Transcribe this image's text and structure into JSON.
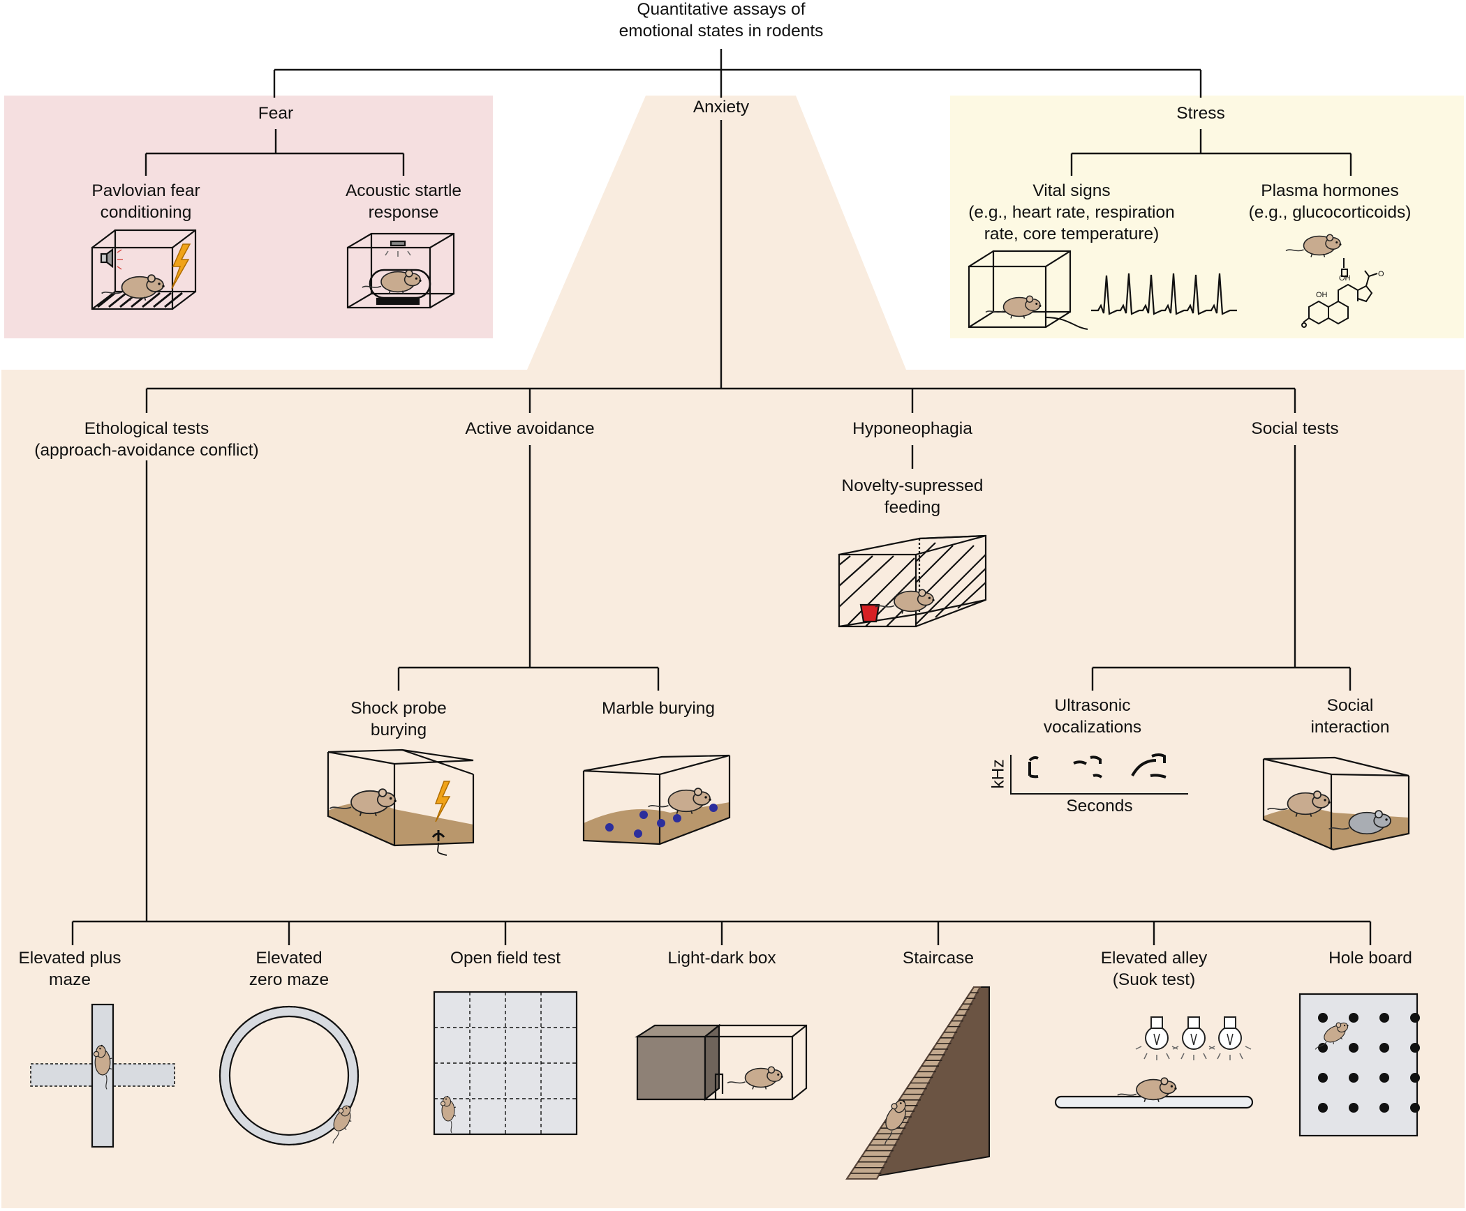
{
  "title": {
    "line1": "Quantitative assays of",
    "line2": "emotional states in rodents"
  },
  "colors": {
    "fear_bg": "#f5dfe0",
    "anxiety_bg": "#f9ecdf",
    "stress_bg": "#fdf9e3",
    "mouse": "#c8ab8f",
    "bedding": "#b9976c",
    "marble": "#2c2e9c",
    "cup": "#d62024",
    "bolt": "#f0a319"
  },
  "fear": {
    "label": "Fear",
    "pavlovian": {
      "line1": "Pavlovian fear",
      "line2": "conditioning"
    },
    "startle": {
      "line1": "Acoustic startle",
      "line2": "response"
    }
  },
  "stress": {
    "label": "Stress",
    "vital": {
      "line1": "Vital signs",
      "line2": "(e.g., heart rate, respiration",
      "line3": "rate, core temperature)"
    },
    "plasma": {
      "line1": "Plasma hormones",
      "line2": "(e.g., glucocorticoids)"
    }
  },
  "anxiety": {
    "label": "Anxiety",
    "ethological": {
      "line1": "Ethological tests",
      "line2": "(approach-avoidance conflict)"
    },
    "active": {
      "label": "Active avoidance"
    },
    "hypo": {
      "label": "Hyponeophagia"
    },
    "social": {
      "label": "Social tests"
    },
    "novelty": {
      "line1": "Novelty-supressed",
      "line2": "feeding"
    },
    "shock": {
      "line1": "Shock probe",
      "line2": "burying"
    },
    "marble": {
      "label": "Marble burying"
    },
    "usv": {
      "line1": "Ultrasonic",
      "line2": "vocalizations",
      "ylabel": "kHz",
      "xlabel": "Seconds"
    },
    "social_int": {
      "line1": "Social",
      "line2": "interaction"
    }
  },
  "ethological_tests": {
    "epm": {
      "line1": "Elevated plus",
      "line2": "maze"
    },
    "ezm": {
      "line1": "Elevated",
      "line2": "zero maze"
    },
    "oft": {
      "label": "Open field test"
    },
    "ldb": {
      "label": "Light-dark box"
    },
    "stair": {
      "label": "Staircase"
    },
    "alley": {
      "line1": "Elevated alley",
      "line2": "(Suok test)"
    },
    "hole": {
      "label": "Hole board"
    }
  }
}
